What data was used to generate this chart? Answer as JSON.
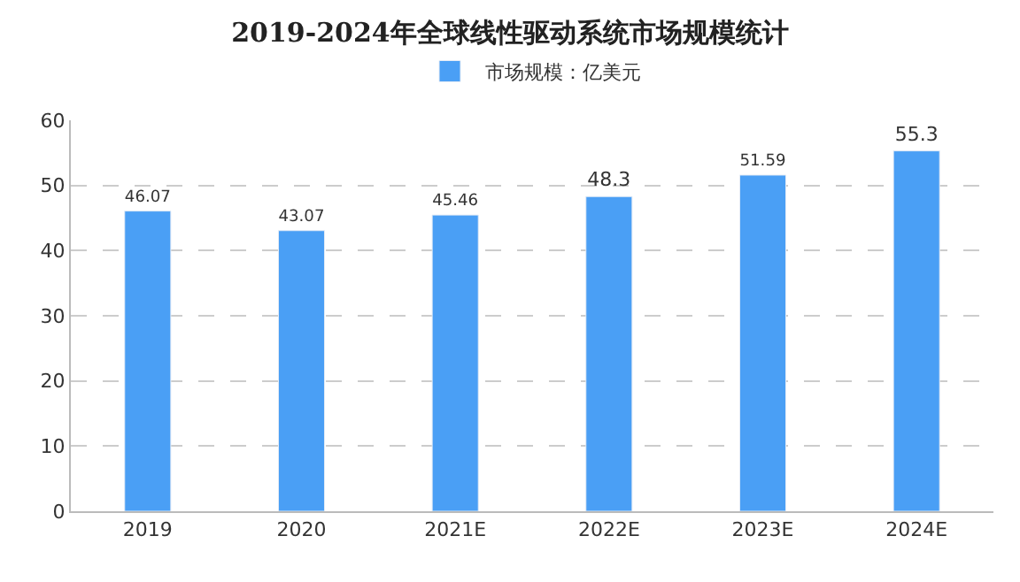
{
  "chart_data": {
    "type": "bar",
    "title": "2019-2024年全球线性驱动系统市场规模统计",
    "categories": [
      "2019",
      "2020",
      "2021E",
      "2022E",
      "2023E",
      "2024E"
    ],
    "series": [
      {
        "name": "市场规模：亿美元",
        "color": "#4a9ff5",
        "values": [
          46.07,
          43.07,
          45.46,
          48.3,
          51.59,
          55.3
        ]
      }
    ],
    "ylim": [
      0,
      60
    ],
    "yticks": [
      0,
      10,
      20,
      30,
      40,
      50,
      60
    ],
    "grid": "y",
    "legend": "top",
    "data_labels": true
  }
}
